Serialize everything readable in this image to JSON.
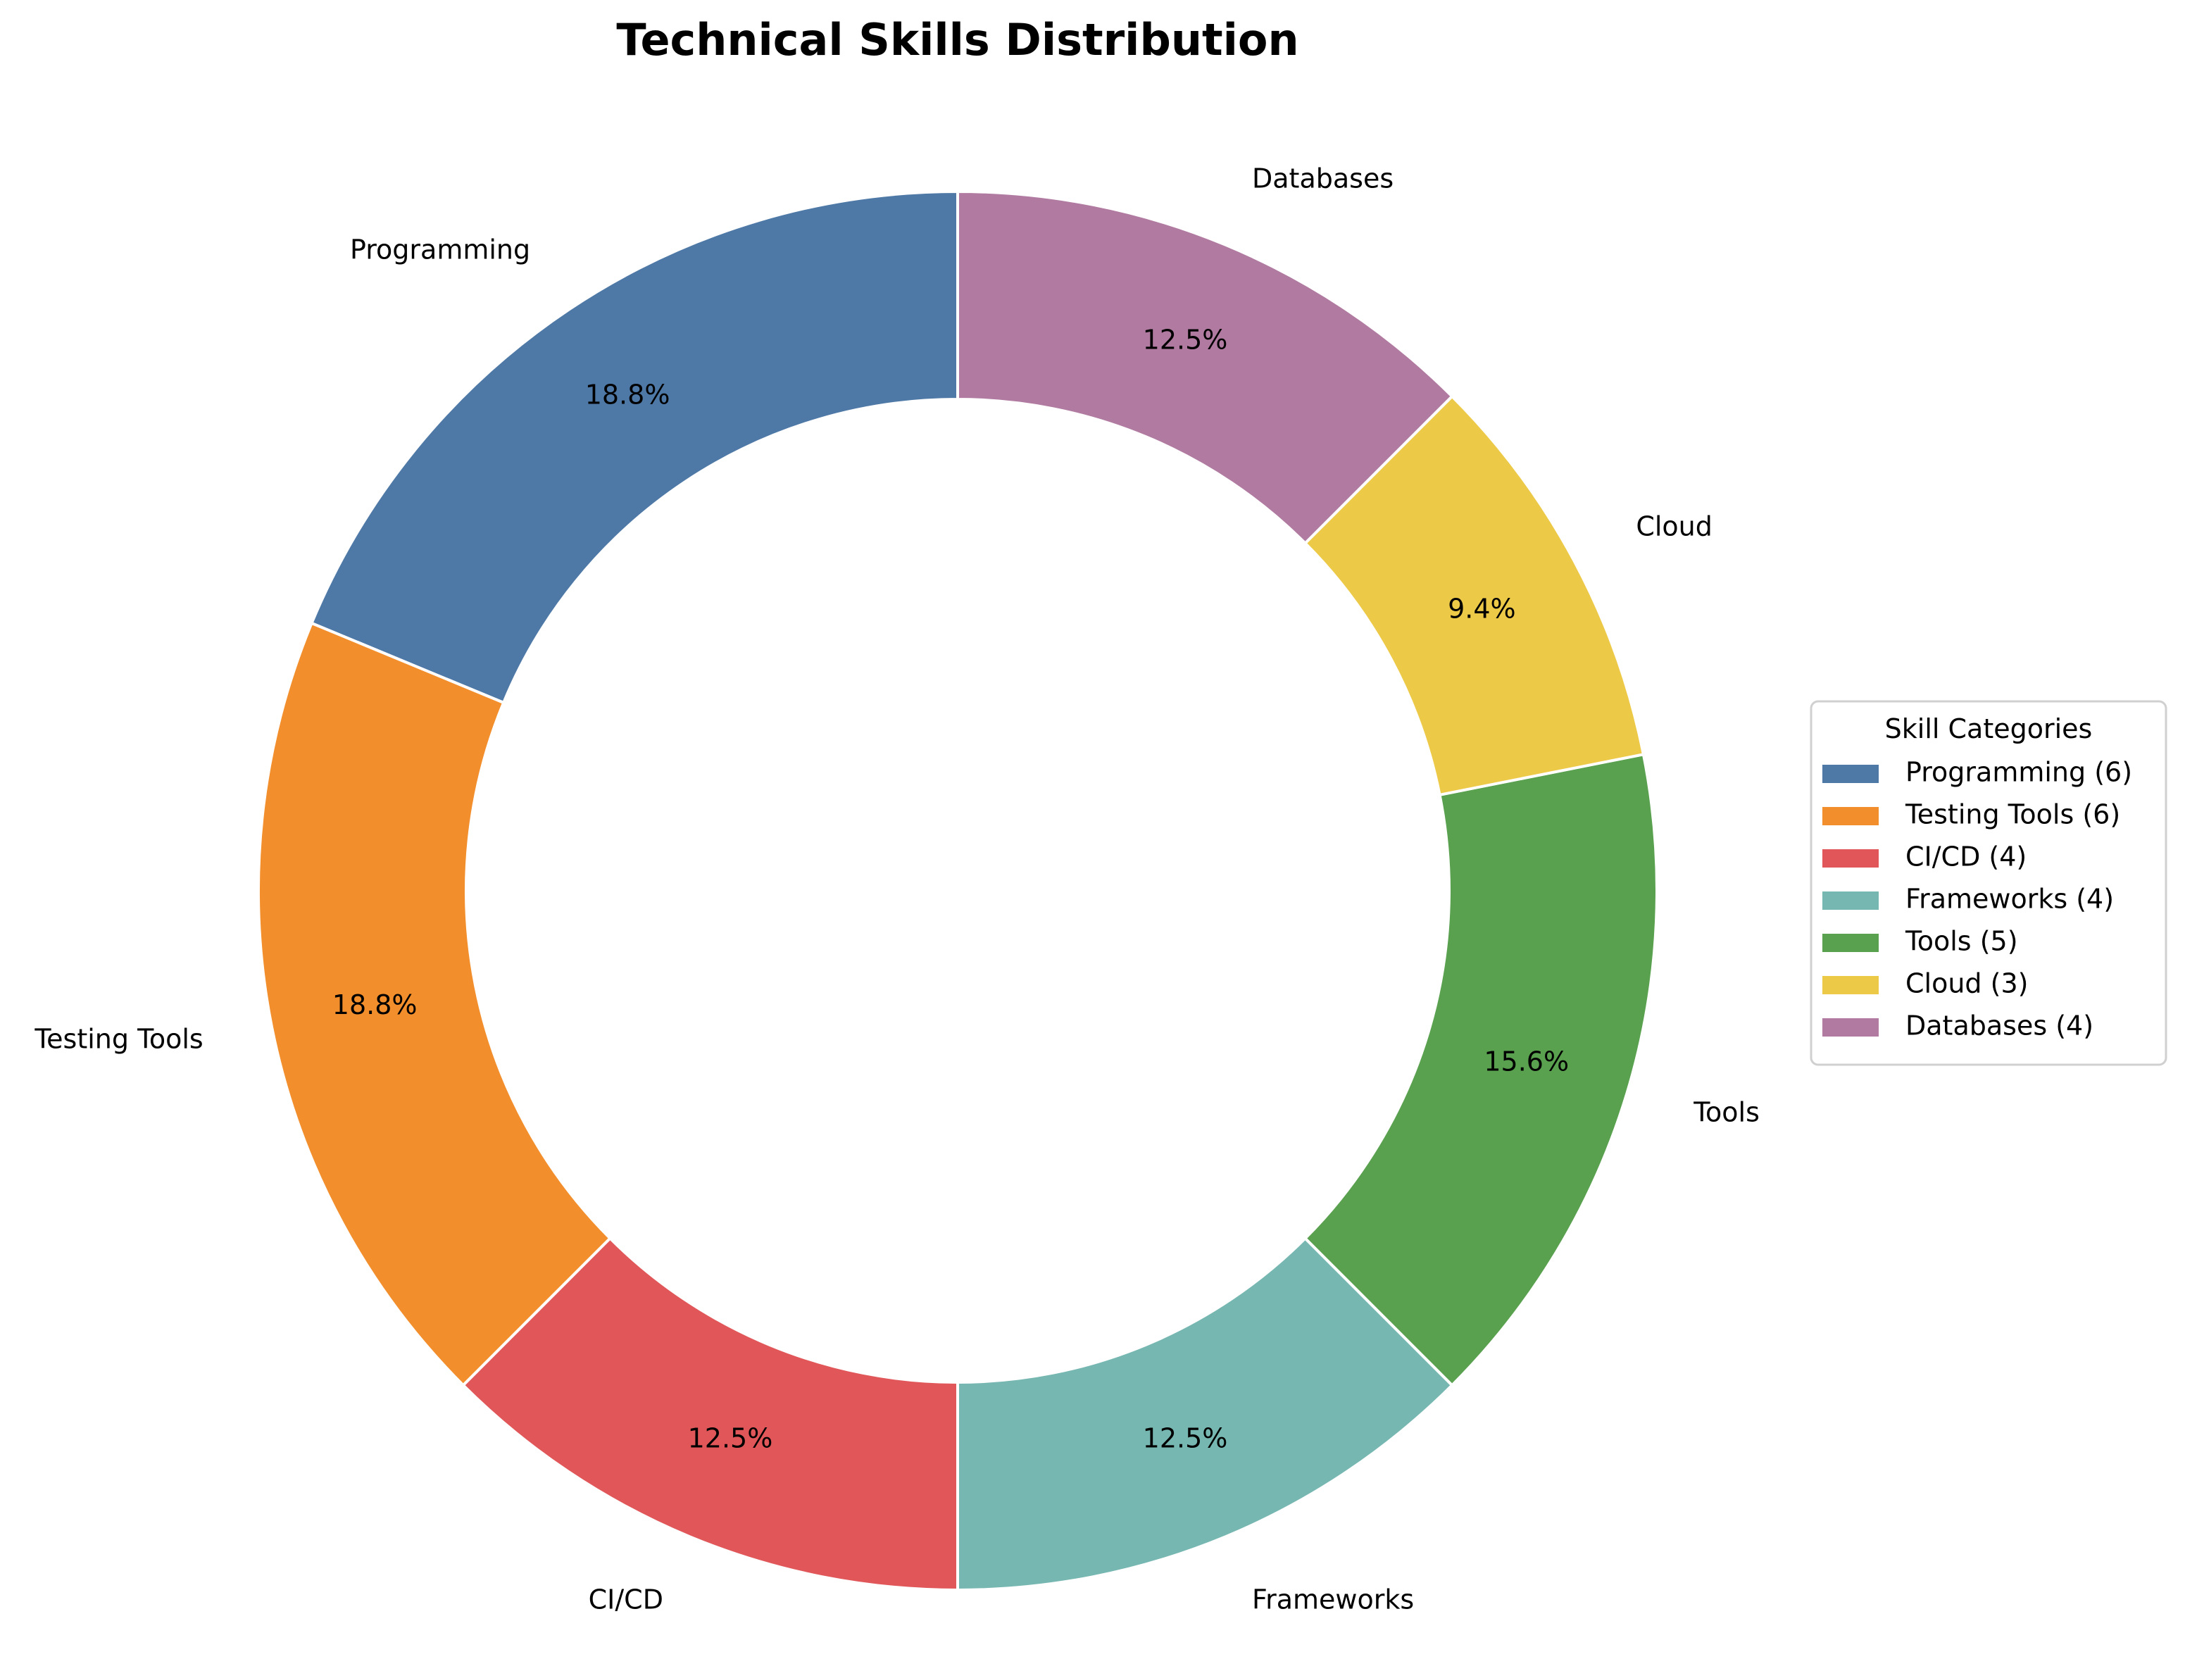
{
  "chart_data": {
    "type": "pie",
    "donut": true,
    "title": "Technical Skills Distribution",
    "categories": [
      "Programming",
      "Testing Tools",
      "CI/CD",
      "Frameworks",
      "Tools",
      "Cloud",
      "Databases"
    ],
    "values": [
      6,
      6,
      4,
      4,
      5,
      3,
      4
    ],
    "percent_labels": [
      "18.8%",
      "18.8%",
      "12.5%",
      "12.5%",
      "15.6%",
      "9.4%",
      "12.5%"
    ],
    "colors": [
      "#4e79a7",
      "#f28e2b",
      "#e15759",
      "#76b7b2",
      "#59a14f",
      "#edc948",
      "#b07aa1"
    ],
    "start_angle_deg": 90,
    "direction": "counterclockwise",
    "legend": {
      "title": "Skill Categories",
      "position": "right",
      "entries": [
        "Programming (6)",
        "Testing Tools (6)",
        "CI/CD (4)",
        "Frameworks (4)",
        "Tools (5)",
        "Cloud (3)",
        "Databases (4)"
      ]
    }
  }
}
